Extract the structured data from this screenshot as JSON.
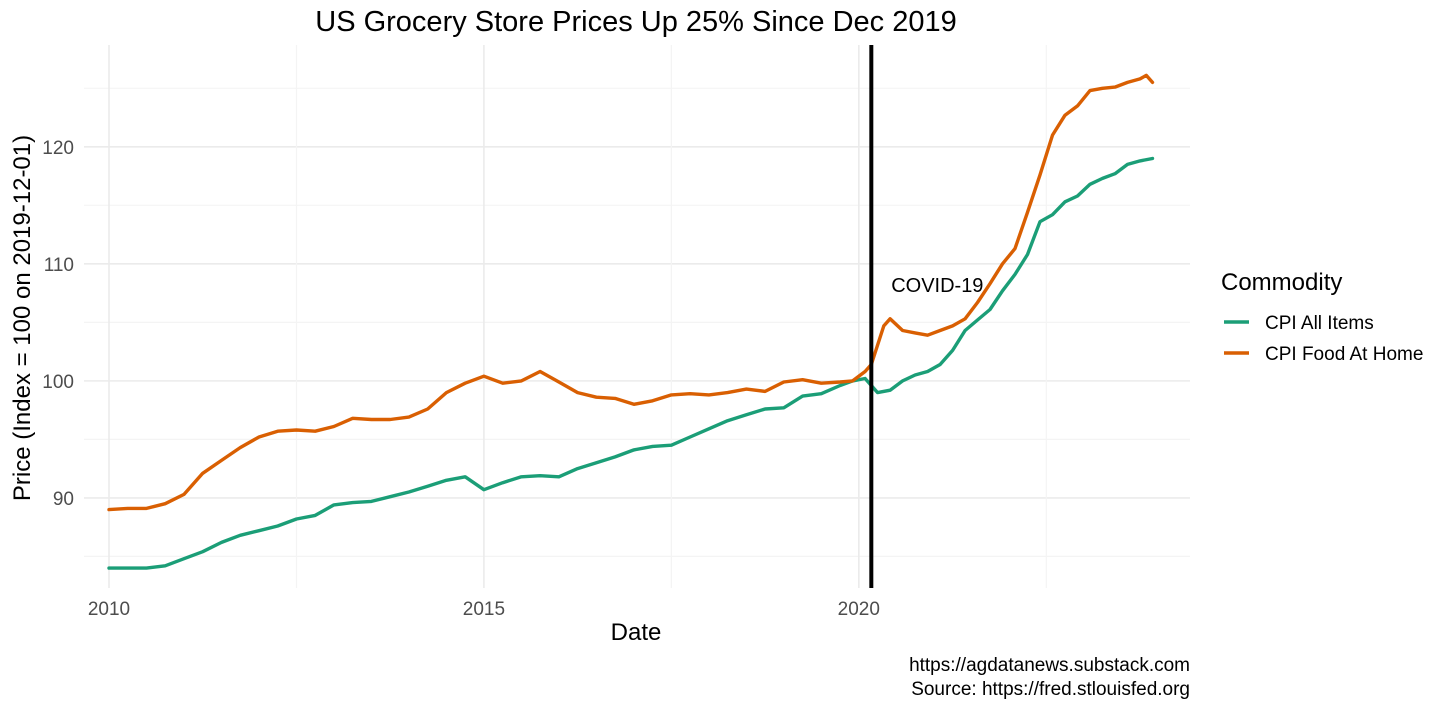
{
  "chart_data": {
    "type": "line",
    "title": "US Grocery Store Prices Up 25% Since Dec 2019",
    "xlabel": "Date",
    "ylabel": "Price (Index = 100 on 2019-12-01)",
    "xlim": [
      "2009-09-01",
      "2024-06-01"
    ],
    "ylim": [
      82.3,
      128.7
    ],
    "x_ticks": [
      "2010",
      "2015",
      "2020"
    ],
    "y_ticks": [
      90,
      100,
      110,
      120
    ],
    "grid": true,
    "legend": {
      "title": "Commodity",
      "position": "right"
    },
    "series": [
      {
        "name": "CPI All Items",
        "color": "#1b9e77",
        "points": [
          [
            "2010-01",
            84.0
          ],
          [
            "2010-04",
            84.0
          ],
          [
            "2010-07",
            84.0
          ],
          [
            "2010-10",
            84.2
          ],
          [
            "2011-01",
            84.8
          ],
          [
            "2011-04",
            85.4
          ],
          [
            "2011-07",
            86.2
          ],
          [
            "2011-10",
            86.8
          ],
          [
            "2012-01",
            87.2
          ],
          [
            "2012-04",
            87.6
          ],
          [
            "2012-07",
            88.2
          ],
          [
            "2012-10",
            88.5
          ],
          [
            "2013-01",
            89.4
          ],
          [
            "2013-04",
            89.6
          ],
          [
            "2013-07",
            89.7
          ],
          [
            "2013-10",
            90.1
          ],
          [
            "2014-01",
            90.5
          ],
          [
            "2014-04",
            91.0
          ],
          [
            "2014-07",
            91.5
          ],
          [
            "2014-10",
            91.8
          ],
          [
            "2015-01",
            90.7
          ],
          [
            "2015-04",
            91.3
          ],
          [
            "2015-07",
            91.8
          ],
          [
            "2015-10",
            91.9
          ],
          [
            "2016-01",
            91.8
          ],
          [
            "2016-04",
            92.5
          ],
          [
            "2016-07",
            93.0
          ],
          [
            "2016-10",
            93.5
          ],
          [
            "2017-01",
            94.1
          ],
          [
            "2017-04",
            94.4
          ],
          [
            "2017-07",
            94.5
          ],
          [
            "2017-10",
            95.2
          ],
          [
            "2018-01",
            95.9
          ],
          [
            "2018-04",
            96.6
          ],
          [
            "2018-07",
            97.1
          ],
          [
            "2018-10",
            97.6
          ],
          [
            "2019-01",
            97.7
          ],
          [
            "2019-04",
            98.7
          ],
          [
            "2019-07",
            98.9
          ],
          [
            "2019-10",
            99.6
          ],
          [
            "2019-12",
            100.0
          ],
          [
            "2020-02",
            100.2
          ],
          [
            "2020-04",
            99.0
          ],
          [
            "2020-06",
            99.2
          ],
          [
            "2020-08",
            100.0
          ],
          [
            "2020-10",
            100.5
          ],
          [
            "2020-12",
            100.8
          ],
          [
            "2021-02",
            101.4
          ],
          [
            "2021-04",
            102.6
          ],
          [
            "2021-06",
            104.3
          ],
          [
            "2021-08",
            105.2
          ],
          [
            "2021-10",
            106.1
          ],
          [
            "2021-12",
            107.7
          ],
          [
            "2022-02",
            109.1
          ],
          [
            "2022-04",
            110.8
          ],
          [
            "2022-06",
            113.6
          ],
          [
            "2022-08",
            114.2
          ],
          [
            "2022-10",
            115.3
          ],
          [
            "2022-12",
            115.8
          ],
          [
            "2023-02",
            116.8
          ],
          [
            "2023-04",
            117.3
          ],
          [
            "2023-06",
            117.7
          ],
          [
            "2023-08",
            118.5
          ],
          [
            "2023-10",
            118.8
          ],
          [
            "2023-12",
            119.0
          ]
        ]
      },
      {
        "name": "CPI Food At Home",
        "color": "#d95f02",
        "points": [
          [
            "2010-01",
            89.0
          ],
          [
            "2010-04",
            89.1
          ],
          [
            "2010-07",
            89.1
          ],
          [
            "2010-10",
            89.5
          ],
          [
            "2011-01",
            90.3
          ],
          [
            "2011-04",
            92.1
          ],
          [
            "2011-07",
            93.2
          ],
          [
            "2011-10",
            94.3
          ],
          [
            "2012-01",
            95.2
          ],
          [
            "2012-04",
            95.7
          ],
          [
            "2012-07",
            95.8
          ],
          [
            "2012-10",
            95.7
          ],
          [
            "2013-01",
            96.1
          ],
          [
            "2013-04",
            96.8
          ],
          [
            "2013-07",
            96.7
          ],
          [
            "2013-10",
            96.7
          ],
          [
            "2014-01",
            96.9
          ],
          [
            "2014-04",
            97.6
          ],
          [
            "2014-07",
            99.0
          ],
          [
            "2014-10",
            99.8
          ],
          [
            "2015-01",
            100.4
          ],
          [
            "2015-04",
            99.8
          ],
          [
            "2015-07",
            100.0
          ],
          [
            "2015-10",
            100.8
          ],
          [
            "2016-01",
            99.9
          ],
          [
            "2016-04",
            99.0
          ],
          [
            "2016-07",
            98.6
          ],
          [
            "2016-10",
            98.5
          ],
          [
            "2017-01",
            98.0
          ],
          [
            "2017-04",
            98.3
          ],
          [
            "2017-07",
            98.8
          ],
          [
            "2017-10",
            98.9
          ],
          [
            "2018-01",
            98.8
          ],
          [
            "2018-04",
            99.0
          ],
          [
            "2018-07",
            99.3
          ],
          [
            "2018-10",
            99.1
          ],
          [
            "2019-01",
            99.9
          ],
          [
            "2019-04",
            100.1
          ],
          [
            "2019-07",
            99.8
          ],
          [
            "2019-10",
            99.9
          ],
          [
            "2019-12",
            100.0
          ],
          [
            "2020-02",
            100.8
          ],
          [
            "2020-03",
            101.4
          ],
          [
            "2020-05",
            104.7
          ],
          [
            "2020-06",
            105.3
          ],
          [
            "2020-08",
            104.3
          ],
          [
            "2020-10",
            104.1
          ],
          [
            "2020-12",
            103.9
          ],
          [
            "2021-02",
            104.3
          ],
          [
            "2021-04",
            104.7
          ],
          [
            "2021-06",
            105.3
          ],
          [
            "2021-08",
            106.7
          ],
          [
            "2021-10",
            108.3
          ],
          [
            "2021-12",
            110.0
          ],
          [
            "2022-02",
            111.3
          ],
          [
            "2022-04",
            114.4
          ],
          [
            "2022-06",
            117.6
          ],
          [
            "2022-08",
            121.0
          ],
          [
            "2022-10",
            122.7
          ],
          [
            "2022-12",
            123.5
          ],
          [
            "2023-02",
            124.8
          ],
          [
            "2023-04",
            125.0
          ],
          [
            "2023-06",
            125.1
          ],
          [
            "2023-08",
            125.5
          ],
          [
            "2023-10",
            125.8
          ],
          [
            "2023-11",
            126.1
          ],
          [
            "2023-12",
            125.5
          ]
        ]
      }
    ],
    "vline": {
      "x": "2020-03",
      "label": "COVID-19"
    },
    "caption": [
      "https://agdatanews.substack.com",
      "Source: https://fred.stlouisfed.org"
    ]
  }
}
